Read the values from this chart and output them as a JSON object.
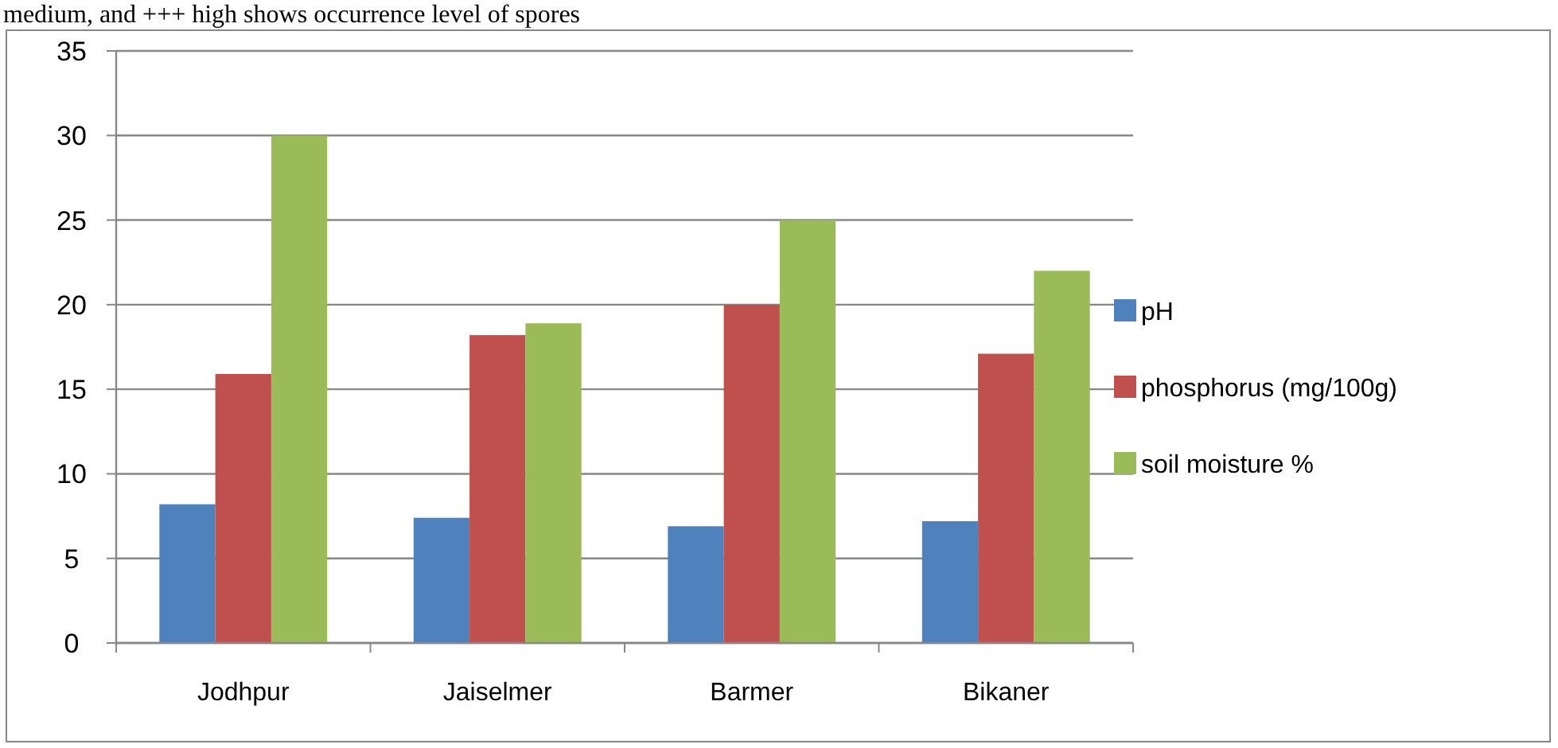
{
  "chart_data": {
    "type": "bar",
    "annotations": [
      "medium, and +++ high shows occurrence level of spores"
    ],
    "categories": [
      "Jodhpur",
      "Jaiselmer",
      "Barmer",
      "Bikaner"
    ],
    "series": [
      {
        "name": "pH",
        "color": "#4f81bd",
        "values": [
          8.2,
          7.4,
          6.9,
          7.2
        ]
      },
      {
        "name": "phosphorus (mg/100g)",
        "color": "#c0504d",
        "values": [
          15.9,
          18.2,
          20,
          17.1
        ]
      },
      {
        "name": "soil moisture %",
        "color": "#9bbb59",
        "values": [
          30,
          18.9,
          25,
          22
        ]
      }
    ],
    "ylim": [
      0,
      35
    ],
    "yticks": [
      0,
      5,
      10,
      15,
      20,
      25,
      30,
      35
    ],
    "grid": "y",
    "legend": "right"
  }
}
